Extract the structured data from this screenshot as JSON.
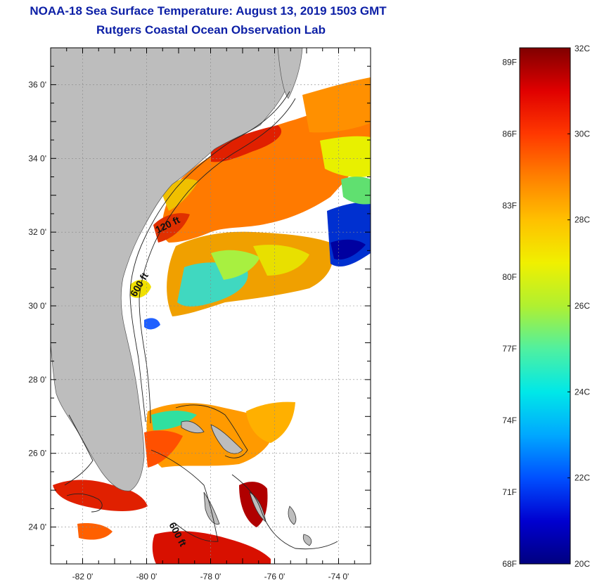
{
  "header": {
    "title": "NOAA-18 Sea Surface Temperature:  August 13, 2019 1503 GMT",
    "subtitle": "Rutgers Coastal Ocean Observation Lab"
  },
  "map": {
    "lon_range": [
      -83,
      -73
    ],
    "lat_range": [
      23,
      37
    ],
    "lon_ticks": [
      {
        "value": -82,
        "label": "-82 0'"
      },
      {
        "value": -80,
        "label": "-80 0'"
      },
      {
        "value": -78,
        "label": "-78 0'"
      },
      {
        "value": -76,
        "label": "-76 0'"
      },
      {
        "value": -74,
        "label": "-74 0'"
      }
    ],
    "lat_ticks": [
      {
        "value": 36,
        "label": "36 0'"
      },
      {
        "value": 34,
        "label": "34 0'"
      },
      {
        "value": 32,
        "label": "32 0'"
      },
      {
        "value": 30,
        "label": "30 0'"
      },
      {
        "value": 28,
        "label": "28 0'"
      },
      {
        "value": 26,
        "label": "26 0'"
      },
      {
        "value": 24,
        "label": "24 0'"
      }
    ],
    "contour_labels": [
      "120 ft",
      "600 ft",
      "600 ft"
    ],
    "land_color": "#bdbdbd",
    "grid": true
  },
  "colorbar": {
    "range_c": [
      20,
      32
    ],
    "celsius_labels": [
      "32C",
      "30C",
      "28C",
      "26C",
      "24C",
      "22C",
      "20C"
    ],
    "fahrenheit_labels": [
      "89F",
      "86F",
      "83F",
      "80F",
      "77F",
      "74F",
      "71F",
      "68F"
    ],
    "colors": [
      "#000080",
      "#0000d0",
      "#0050ff",
      "#00a8ff",
      "#00e8e8",
      "#50f0a0",
      "#b0f030",
      "#f0f000",
      "#ffc000",
      "#ff8000",
      "#ff3800",
      "#e00000",
      "#800000"
    ]
  }
}
